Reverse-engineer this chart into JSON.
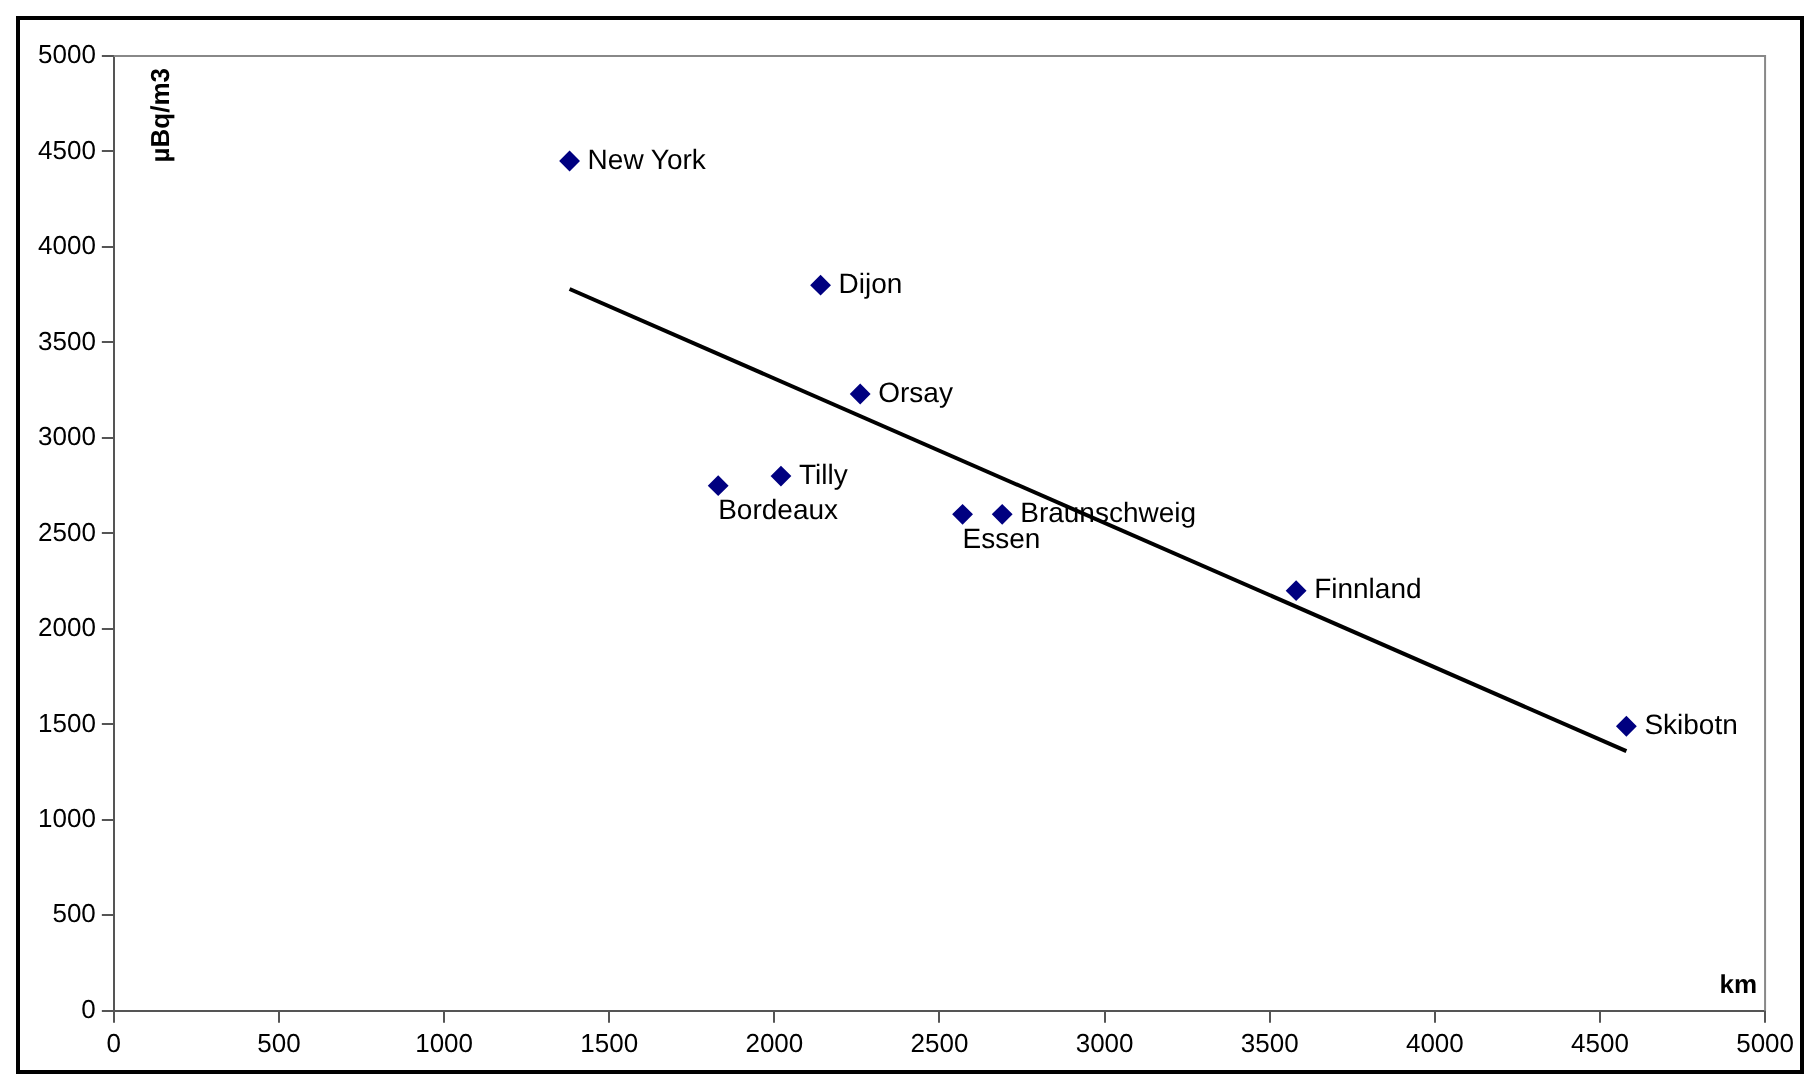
{
  "chart_data": {
    "type": "scatter",
    "xlabel": "km",
    "ylabel": "µBq/m3",
    "xlim": [
      0,
      5000
    ],
    "ylim": [
      0,
      5000
    ],
    "xticks": [
      0,
      500,
      1000,
      1500,
      2000,
      2500,
      3000,
      3500,
      4000,
      4500,
      5000
    ],
    "yticks": [
      0,
      500,
      1000,
      1500,
      2000,
      2500,
      3000,
      3500,
      4000,
      4500,
      5000
    ],
    "grid": false,
    "legend": false,
    "marker": "diamond",
    "series": [
      {
        "color": "#000080",
        "x": [
          1380,
          2140,
          2260,
          1830,
          2020,
          2570,
          2690,
          3580,
          4580
        ],
        "values": [
          4450,
          3800,
          3230,
          2750,
          2800,
          2600,
          2600,
          2200,
          1490
        ]
      },
      {
        "type": "line",
        "color": "#000000",
        "x": [
          1380,
          4580
        ],
        "values": [
          3780,
          1360
        ],
        "marker": "none",
        "line_style": "solid"
      }
    ],
    "annotations": [
      {
        "text": "New York",
        "x": 1380,
        "y": 4450
      },
      {
        "text": "Dijon",
        "x": 2140,
        "y": 3800
      },
      {
        "text": "Orsay",
        "x": 2260,
        "y": 3230
      },
      {
        "text": "Bordeaux",
        "x": 1830,
        "y": 2750
      },
      {
        "text": "Tilly",
        "x": 2020,
        "y": 2800
      },
      {
        "text": "Essen",
        "x": 2570,
        "y": 2600
      },
      {
        "text": "Braunschweig",
        "x": 2690,
        "y": 2600
      },
      {
        "text": "Finnland",
        "x": 3580,
        "y": 2200
      },
      {
        "text": "Skibotn",
        "x": 4580,
        "y": 1490
      }
    ]
  }
}
